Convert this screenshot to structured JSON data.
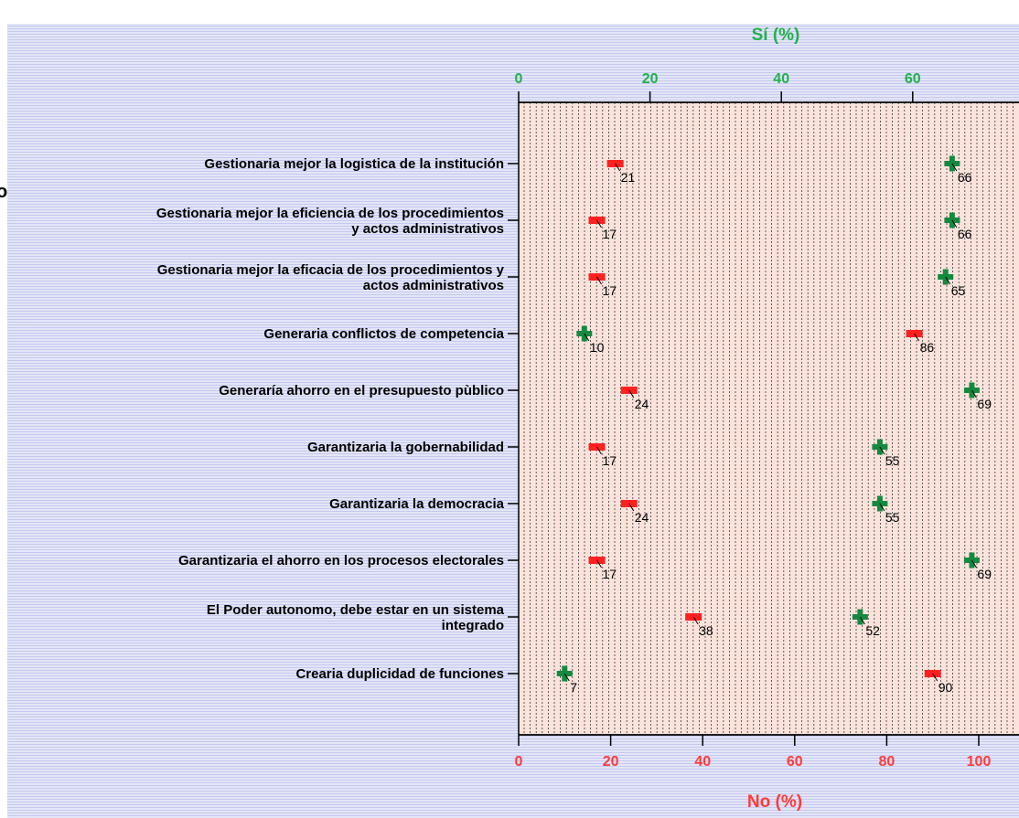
{
  "chart_data": {
    "type": "scatter",
    "categories": [
      "Gestionaria mejor la logistica de la institución",
      "Gestionaria mejor la eficiencia de los procedimientos|y actos administrativos",
      "Gestionaria mejor la eficacia de los procedimientos y|actos administrativos",
      "Generaria conflictos de competencia",
      "Generaría ahorro en el presupuesto pùblico",
      "Garantizaria la gobernabilidad",
      "Garantizaria la democracia",
      "Garantizaria el ahorro en los procesos electorales",
      "El Poder autonomo, debe estar en un sistema|integrado",
      "Crearia duplicidad de funciones"
    ],
    "series": [
      {
        "name": "No (%)",
        "axis": "bottom",
        "color": "#ff2020",
        "marker": "bar",
        "values": [
          21,
          17,
          17,
          86,
          24,
          17,
          24,
          17,
          38,
          90
        ]
      },
      {
        "name": "Sí (%)",
        "axis": "top",
        "color": "#138a3f",
        "marker": "plus",
        "values": [
          66,
          66,
          65,
          10,
          69,
          55,
          55,
          69,
          52,
          7
        ]
      }
    ],
    "top_axis": {
      "title": "Sí  (%)",
      "ticks": [
        "0",
        "20",
        "40",
        "60"
      ],
      "range": [
        0,
        76.5
      ],
      "color": "#22b14c"
    },
    "bottom_axis": {
      "title": "No (%)",
      "ticks": [
        "0",
        "20",
        "40",
        "60",
        "80",
        "100"
      ],
      "range": [
        0,
        109
      ],
      "color": "#ff3b3b"
    },
    "plot_background": "#fbe3dc",
    "grid": "vertical-dotted"
  }
}
